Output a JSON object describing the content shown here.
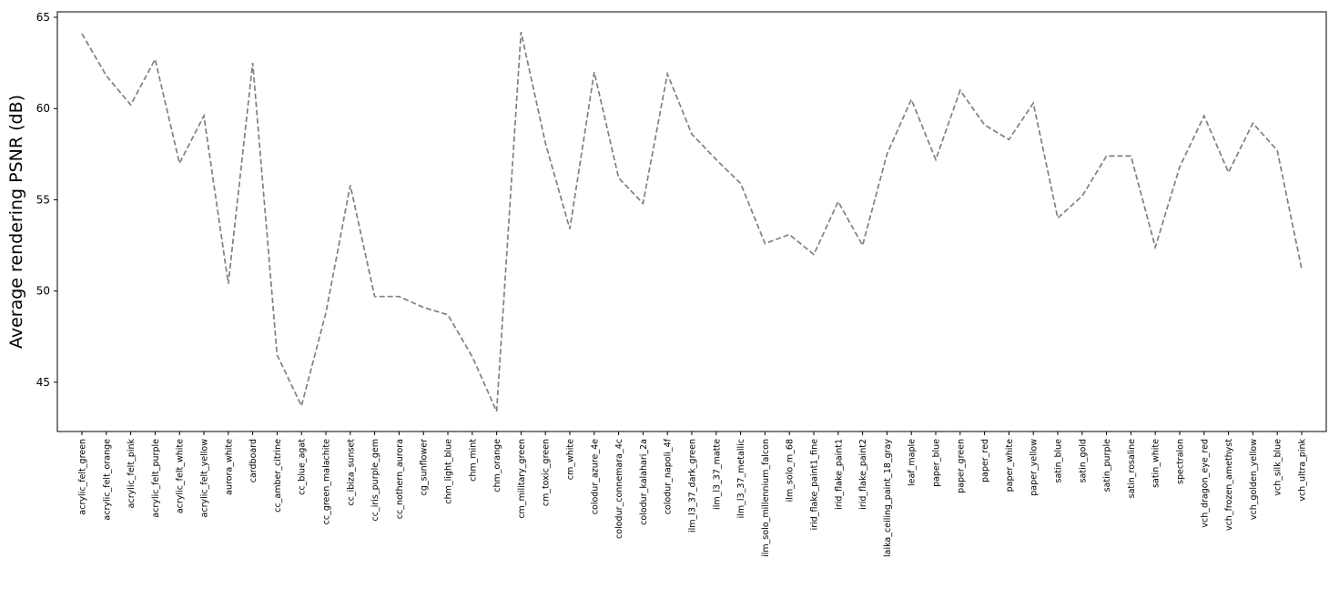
{
  "chart_data": {
    "type": "line",
    "title": "",
    "xlabel": "",
    "ylabel": "Average rendering PSNR (dB)",
    "ylim": [
      42.3,
      65.3
    ],
    "yticks": [
      45,
      50,
      55,
      60,
      65
    ],
    "grid": false,
    "line_style": "dashed",
    "line_color": "#808080",
    "categories": [
      "acrylic_felt_green",
      "acrylic_felt_orange",
      "acrylic_felt_pink",
      "acrylic_felt_purple",
      "acrylic_felt_white",
      "acrylic_felt_yellow",
      "aurora_white",
      "cardboard",
      "cc_amber_citrine",
      "cc_blue_agat",
      "cc_green_malachite",
      "cc_ibiza_sunset",
      "cc_iris_purple_gem",
      "cc_nothern_aurora",
      "cg_sunflower",
      "chm_light_blue",
      "chm_mint",
      "chm_orange",
      "cm_military_green",
      "cm_toxic_green",
      "cm_white",
      "colodur_azure_4e",
      "colodur_connemara_4c",
      "colodur_kalahari_2a",
      "colodur_napoli_4f",
      "ilm_l3_37_dark_green",
      "ilm_l3_37_matte",
      "ilm_l3_37_metallic",
      "ilm_solo_millennium_falcon",
      "ilm_solo_m_68",
      "irid_flake_paint1_fine",
      "irid_flake_paint1",
      "irid_flake_paint2",
      "laika_ceiling_paint_18_gray",
      "leaf_maple",
      "paper_blue",
      "paper_green",
      "paper_red",
      "paper_white",
      "paper_yellow",
      "satin_blue",
      "satin_gold",
      "satin_purple",
      "satin_rosaline",
      "satin_white",
      "spectralon",
      "vch_dragon_eye_red",
      "vch_frozen_amethyst",
      "vch_golden_yellow",
      "vch_silk_blue",
      "vch_ultra_pink"
    ],
    "series": [
      {
        "values": [
          64.1,
          61.8,
          60.2,
          62.7,
          57.0,
          59.6,
          50.4,
          62.5,
          46.5,
          43.7,
          48.8,
          55.8,
          49.7,
          49.7,
          49.1,
          48.7,
          46.4,
          43.4,
          64.2,
          58.1,
          53.4,
          62.0,
          56.2,
          54.8,
          61.9,
          58.6,
          57.2,
          55.9,
          52.6,
          53.1,
          52.0,
          54.9,
          52.5,
          57.5,
          60.5,
          57.2,
          61.0,
          59.1,
          58.3,
          60.3,
          54.0,
          55.2,
          57.4,
          57.4,
          52.4,
          56.8,
          59.6,
          56.5,
          59.2,
          57.7,
          51.2
        ]
      }
    ]
  }
}
